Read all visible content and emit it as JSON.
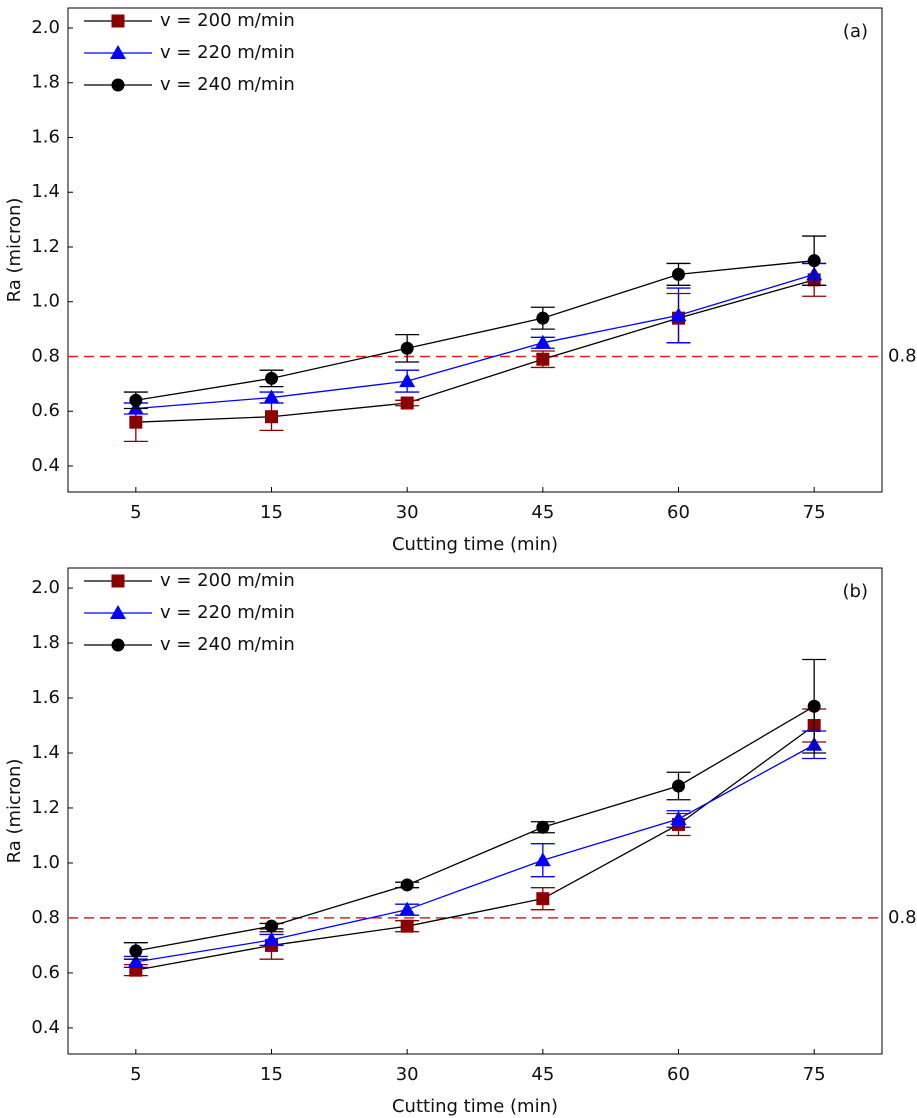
{
  "chart_data": [
    {
      "type": "line",
      "annotation": "(a)",
      "x_label": "Cutting time (min)",
      "y_label": "Ra (micron)",
      "categories": [
        "5",
        "15",
        "30",
        "45",
        "60",
        "75"
      ],
      "ylim": [
        0.305,
        2.073
      ],
      "yticks": [
        0.4,
        0.6,
        0.8,
        {
          "value": 1.0,
          "label": "1.0"
        },
        1.2,
        1.4,
        1.6,
        1.8,
        {
          "value": 2.0,
          "label": "2.0"
        }
      ],
      "hline": 0.8,
      "hline_color": "#e02020",
      "legend": "upper left",
      "series": [
        {
          "name": "v = 200 m/min",
          "color": "#8b0000",
          "line_color": "#000000",
          "marker": "square",
          "values": [
            0.56,
            0.58,
            0.63,
            0.79,
            0.94,
            1.08
          ],
          "errors": [
            0.07,
            0.05,
            0.01,
            0.03,
            0.09,
            0.06
          ]
        },
        {
          "name": "v = 220 m/min",
          "color": "#0000ff",
          "line_color": "#0000ff",
          "marker": "triangle",
          "values": [
            0.61,
            0.65,
            0.71,
            0.85,
            0.95,
            1.1
          ],
          "errors": [
            0.02,
            0.02,
            0.04,
            0.02,
            0.1,
            0.04
          ]
        },
        {
          "name": "v = 240 m/min",
          "color": "#000000",
          "line_color": "#000000",
          "marker": "circle",
          "values": [
            0.64,
            0.72,
            0.83,
            0.94,
            1.1,
            1.15
          ],
          "errors": [
            0.03,
            0.03,
            0.05,
            0.04,
            0.04,
            0.09
          ]
        }
      ]
    },
    {
      "type": "line",
      "annotation": "(b)",
      "x_label": "Cutting time (min)",
      "y_label": "Ra (micron)",
      "categories": [
        "5",
        "15",
        "30",
        "45",
        "60",
        "75"
      ],
      "ylim": [
        0.305,
        2.073
      ],
      "yticks": [
        0.4,
        0.6,
        0.8,
        {
          "value": 1.0,
          "label": "1.0"
        },
        1.2,
        1.4,
        1.6,
        1.8,
        {
          "value": 2.0,
          "label": "2.0"
        }
      ],
      "hline": 0.8,
      "hline_color": "#e02020",
      "legend": "upper left",
      "series": [
        {
          "name": "v = 200 m/min",
          "color": "#8b0000",
          "line_color": "#000000",
          "marker": "square",
          "values": [
            0.61,
            0.7,
            0.77,
            0.87,
            1.14,
            1.5
          ],
          "errors": [
            0.02,
            0.05,
            0.02,
            0.04,
            0.04,
            0.06
          ]
        },
        {
          "name": "v = 220 m/min",
          "color": "#0000ff",
          "line_color": "#0000ff",
          "marker": "triangle",
          "values": [
            0.64,
            0.72,
            0.83,
            1.01,
            1.16,
            1.43
          ],
          "errors": [
            0.02,
            0.02,
            0.02,
            0.06,
            0.03,
            0.05
          ]
        },
        {
          "name": "v = 240 m/min",
          "color": "#000000",
          "line_color": "#000000",
          "marker": "circle",
          "values": [
            0.68,
            0.77,
            0.92,
            1.13,
            1.28,
            1.57
          ],
          "errors": [
            0.03,
            0.01,
            0.01,
            0.02,
            0.05,
            0.17
          ]
        }
      ]
    }
  ]
}
